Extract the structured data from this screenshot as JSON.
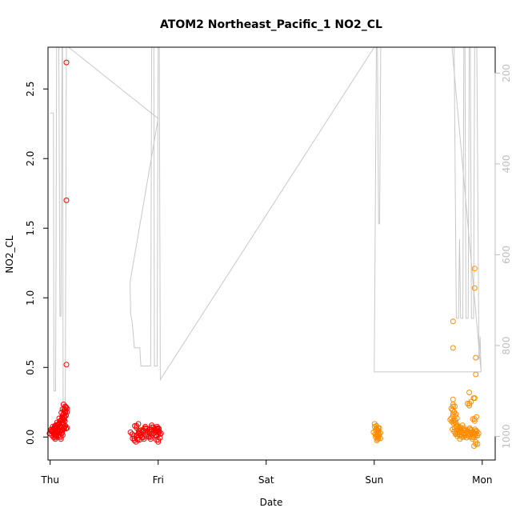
{
  "chart_data": {
    "type": "scatter",
    "title": "ATOM2 Northeast_Pacific_1 NO2_CL",
    "xlabel": "Date",
    "ylabel": "NO2_CL",
    "x_ticks": [
      "Thu",
      "Fri",
      "Sat",
      "Sun",
      "Mon"
    ],
    "x_tick_days": [
      0,
      1,
      2,
      3,
      4
    ],
    "xlim_days": [
      -0.02,
      4.12
    ],
    "ylim": [
      -0.165,
      2.8
    ],
    "y_ticks": [
      0.0,
      0.5,
      1.0,
      1.5,
      2.0,
      2.5
    ],
    "y2_ticks": [
      200,
      400,
      600,
      800,
      1000
    ],
    "y2lim": [
      1052,
      143
    ],
    "colors": {
      "series_1": "#ff0000",
      "series_2": "#ff8c00",
      "secondary_line": "#c8c8c8",
      "axis": "#000000",
      "secondary_axis": "#bdbdbd"
    },
    "series": [
      {
        "color": "series_1",
        "points": [
          [
            0.15,
            2.69
          ],
          [
            0.15,
            1.7
          ],
          [
            0.15,
            0.52
          ],
          [
            0.14,
            0.22
          ],
          [
            0.13,
            0.2
          ],
          [
            0.14,
            0.18
          ],
          [
            0.12,
            0.16
          ],
          [
            0.13,
            0.14
          ],
          [
            0.11,
            0.13
          ],
          [
            0.1,
            0.12
          ],
          [
            0.12,
            0.1
          ],
          [
            0.09,
            0.1
          ],
          [
            0.08,
            0.09
          ],
          [
            0.06,
            0.08
          ],
          [
            0.05,
            0.07
          ],
          [
            0.04,
            0.06
          ],
          [
            0.02,
            0.05
          ],
          [
            0.01,
            0.04
          ],
          [
            0.03,
            0.03
          ],
          [
            0.05,
            0.02
          ],
          [
            0.07,
            0.03
          ],
          [
            0.09,
            0.04
          ],
          [
            0.11,
            0.05
          ],
          [
            0.13,
            0.06
          ],
          [
            0.14,
            0.08
          ],
          [
            0.1,
            0.0
          ],
          [
            0.06,
            0.01
          ],
          [
            0.03,
            0.0
          ],
          [
            0.8,
            0.08
          ],
          [
            0.82,
            0.03
          ],
          [
            0.84,
            0.01
          ],
          [
            0.86,
            0.05
          ],
          [
            0.88,
            0.06
          ],
          [
            0.9,
            0.02
          ],
          [
            0.92,
            0.04
          ],
          [
            0.94,
            0.07
          ],
          [
            0.96,
            0.03
          ],
          [
            0.98,
            0.05
          ],
          [
            1.0,
            0.02
          ],
          [
            1.01,
            0.04
          ],
          [
            0.78,
            -0.01
          ],
          [
            0.81,
            -0.02
          ],
          [
            0.85,
            0.0
          ],
          [
            0.93,
            0.0
          ],
          [
            0.99,
            0.06
          ],
          [
            0.76,
            0.02
          ],
          [
            1.0,
            -0.02
          ]
        ]
      },
      {
        "color": "series_2",
        "points": [
          [
            3.02,
            0.08
          ],
          [
            3.03,
            0.05
          ],
          [
            3.04,
            0.03
          ],
          [
            3.01,
            0.02
          ],
          [
            3.03,
            0.0
          ],
          [
            3.04,
            -0.01
          ],
          [
            3.02,
            0.06
          ],
          [
            3.93,
            1.21
          ],
          [
            3.93,
            1.07
          ],
          [
            3.73,
            0.83
          ],
          [
            3.73,
            0.64
          ],
          [
            3.94,
            0.57
          ],
          [
            3.94,
            0.45
          ],
          [
            3.88,
            0.32
          ],
          [
            3.92,
            0.28
          ],
          [
            3.93,
            0.28
          ],
          [
            3.73,
            0.27
          ],
          [
            3.88,
            0.24
          ],
          [
            3.73,
            0.22
          ],
          [
            3.74,
            0.18
          ],
          [
            3.93,
            0.13
          ],
          [
            3.73,
            0.15
          ],
          [
            3.72,
            0.11
          ],
          [
            3.75,
            0.12
          ],
          [
            3.76,
            0.08
          ],
          [
            3.78,
            0.06
          ],
          [
            3.8,
            0.07
          ],
          [
            3.83,
            0.05
          ],
          [
            3.85,
            0.03
          ],
          [
            3.87,
            0.04
          ],
          [
            3.89,
            0.02
          ],
          [
            3.9,
            0.05
          ],
          [
            3.92,
            0.03
          ],
          [
            3.94,
            0.01
          ],
          [
            3.95,
            0.04
          ],
          [
            3.77,
            0.02
          ],
          [
            3.81,
            0.0
          ],
          [
            3.84,
            0.01
          ],
          [
            3.91,
            0.0
          ],
          [
            3.94,
            -0.05
          ],
          [
            3.74,
            0.04
          ],
          [
            3.79,
            0.03
          ]
        ]
      }
    ],
    "secondary_line": [
      [
        0.0,
        288
      ],
      [
        0.03,
        288
      ],
      [
        0.035,
        900
      ],
      [
        0.05,
        900
      ],
      [
        0.06,
        143
      ],
      [
        0.08,
        143
      ],
      [
        0.09,
        735
      ],
      [
        0.1,
        735
      ],
      [
        0.11,
        143
      ],
      [
        0.115,
        143
      ],
      [
        0.12,
        930
      ],
      [
        0.14,
        930
      ],
      [
        0.15,
        143
      ],
      [
        0.16,
        143
      ],
      [
        0.17,
        143
      ],
      [
        1.0,
        300
      ],
      [
        0.74,
        660
      ],
      [
        0.745,
        730
      ],
      [
        0.76,
        750
      ],
      [
        0.78,
        805
      ],
      [
        0.83,
        805
      ],
      [
        0.84,
        845
      ],
      [
        0.93,
        845
      ],
      [
        0.94,
        143
      ],
      [
        0.96,
        143
      ],
      [
        0.965,
        845
      ],
      [
        0.99,
        845
      ],
      [
        1.0,
        143
      ],
      [
        1.01,
        143
      ],
      [
        1.02,
        875
      ],
      [
        3.0,
        143
      ],
      [
        3.03,
        143
      ],
      [
        3.04,
        532
      ],
      [
        3.05,
        532
      ],
      [
        3.06,
        143
      ],
      [
        3.08,
        143
      ],
      [
        3.02,
        143
      ],
      [
        3.0,
        858
      ],
      [
        3.0,
        858
      ],
      [
        3.99,
        858
      ],
      [
        3.72,
        143
      ],
      [
        3.74,
        143
      ],
      [
        3.76,
        740
      ],
      [
        3.78,
        740
      ],
      [
        3.79,
        565
      ],
      [
        3.8,
        740
      ],
      [
        3.82,
        740
      ],
      [
        3.83,
        143
      ],
      [
        3.84,
        143
      ],
      [
        3.85,
        740
      ],
      [
        3.87,
        740
      ],
      [
        3.88,
        143
      ],
      [
        3.89,
        143
      ],
      [
        3.9,
        740
      ],
      [
        3.92,
        740
      ],
      [
        3.93,
        143
      ],
      [
        3.95,
        143
      ],
      [
        3.97,
        830
      ],
      [
        3.98,
        780
      ],
      [
        3.99,
        858
      ]
    ],
    "grid": false,
    "legend": "none"
  }
}
